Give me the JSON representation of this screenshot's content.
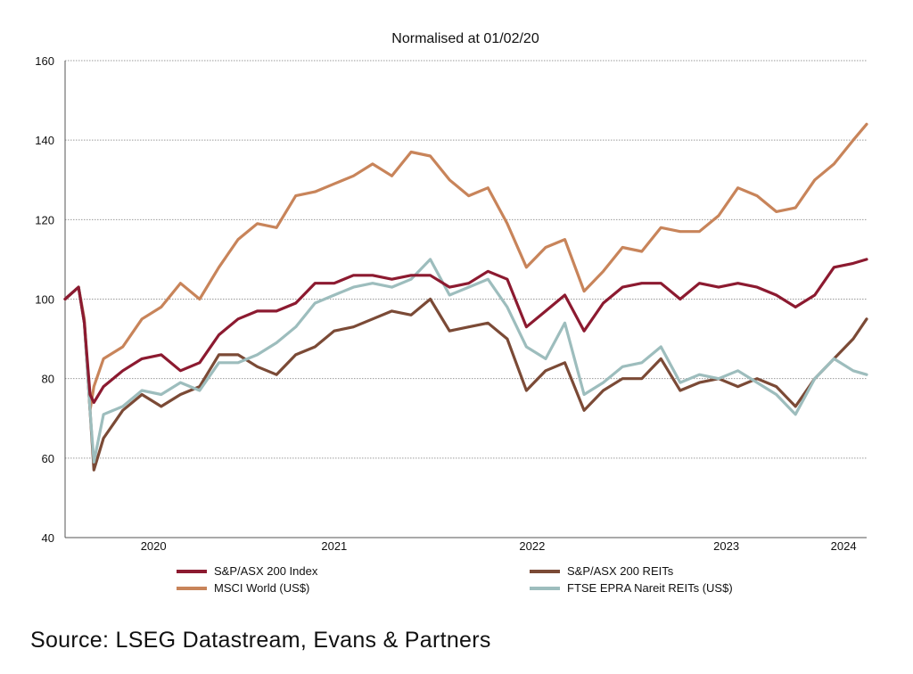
{
  "chart_data": {
    "type": "line",
    "title": "Normalised at 01/02/20",
    "xlabel": "",
    "ylabel": "",
    "ylim": [
      40,
      160
    ],
    "yticks": [
      40,
      60,
      80,
      100,
      120,
      140,
      160
    ],
    "xlim": [
      2020.08,
      2024.25
    ],
    "xticks": [
      {
        "label": "2020",
        "value": 2020.54
      },
      {
        "label": "2021",
        "value": 2021.48
      },
      {
        "label": "2022",
        "value": 2022.51
      },
      {
        "label": "2023",
        "value": 2023.52
      },
      {
        "label": "2024",
        "value": 2024.13
      }
    ],
    "grid": "horizontal-dotted",
    "legend_placement": "bottom",
    "x": [
      2020.08,
      2020.15,
      2020.18,
      2020.21,
      2020.23,
      2020.28,
      2020.38,
      2020.48,
      2020.58,
      2020.68,
      2020.78,
      2020.88,
      2020.98,
      2021.08,
      2021.18,
      2021.28,
      2021.38,
      2021.48,
      2021.58,
      2021.68,
      2021.78,
      2021.88,
      2021.98,
      2022.08,
      2022.18,
      2022.28,
      2022.38,
      2022.48,
      2022.58,
      2022.68,
      2022.78,
      2022.88,
      2022.98,
      2023.08,
      2023.18,
      2023.28,
      2023.38,
      2023.48,
      2023.58,
      2023.68,
      2023.78,
      2023.88,
      2023.98,
      2024.08,
      2024.18,
      2024.25
    ],
    "series": [
      {
        "name": "MSCI World (US$)",
        "color": "#c8845a",
        "values": [
          100,
          103,
          95,
          72,
          78,
          85,
          88,
          95,
          98,
          104,
          100,
          108,
          115,
          119,
          118,
          126,
          127,
          129,
          131,
          134,
          131,
          137,
          136,
          130,
          126,
          128,
          119,
          108,
          113,
          115,
          102,
          107,
          113,
          112,
          118,
          117,
          117,
          121,
          128,
          126,
          122,
          123,
          130,
          134,
          140,
          144
        ]
      },
      {
        "name": "S&P/ASX 200 REITs",
        "color": "#7b4a36",
        "values": [
          100,
          103,
          94,
          72,
          57,
          65,
          72,
          76,
          73,
          76,
          78,
          86,
          86,
          83,
          81,
          86,
          88,
          92,
          93,
          95,
          97,
          96,
          100,
          92,
          93,
          94,
          90,
          77,
          82,
          84,
          72,
          77,
          80,
          80,
          85,
          77,
          79,
          80,
          78,
          80,
          78,
          73,
          80,
          85,
          90,
          95
        ]
      },
      {
        "name": "FTSE EPRA Nareit REITs (US$)",
        "color": "#9dbdbd",
        "values": [
          100,
          103,
          94,
          72,
          59,
          71,
          73,
          77,
          76,
          79,
          77,
          84,
          84,
          86,
          89,
          93,
          99,
          101,
          103,
          104,
          103,
          105,
          110,
          101,
          103,
          105,
          98,
          88,
          85,
          94,
          76,
          79,
          83,
          84,
          88,
          79,
          81,
          80,
          82,
          79,
          76,
          71,
          80,
          85,
          82,
          81
        ]
      },
      {
        "name": "S&P/ASX 200 Index",
        "color": "#8c1a30",
        "values": [
          100,
          103,
          94,
          76,
          74,
          78,
          82,
          85,
          86,
          82,
          84,
          91,
          95,
          97,
          97,
          99,
          104,
          104,
          106,
          106,
          105,
          106,
          106,
          103,
          104,
          107,
          105,
          93,
          97,
          101,
          92,
          99,
          103,
          104,
          104,
          100,
          104,
          103,
          104,
          103,
          101,
          98,
          101,
          108,
          109,
          110
        ]
      }
    ],
    "legend": [
      {
        "label": "S&P/ASX 200 Index",
        "color": "#8c1a30"
      },
      {
        "label": "S&P/ASX 200 REITs",
        "color": "#7b4a36"
      },
      {
        "label": "MSCI World (US$)",
        "color": "#c8845a"
      },
      {
        "label": "FTSE EPRA Nareit REITs (US$)",
        "color": "#9dbdbd"
      }
    ]
  },
  "source": "Source: LSEG Datastream, Evans & Partners"
}
